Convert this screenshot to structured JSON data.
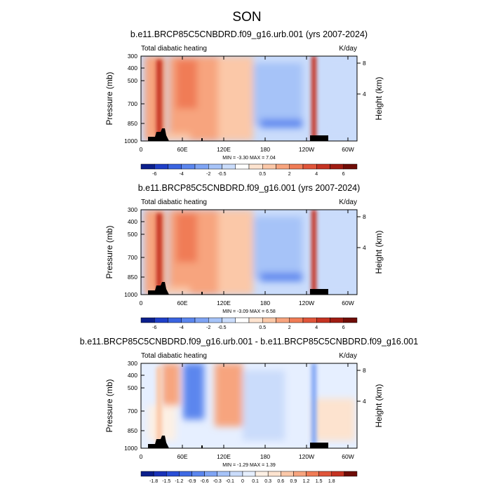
{
  "figure": {
    "season_title": "SON"
  },
  "chart_data": [
    {
      "type": "heatmap",
      "title": "b.e11.BRCP85C5CNBDRD.f09_g16.urb.001 (yrs 2007-2024)",
      "left_string": "Total diabatic heating",
      "right_string": "K/day",
      "ylabel": "Pressure (mb)",
      "y2label": "Height (km)",
      "x_ticks": [
        "0",
        "60E",
        "120E",
        "180",
        "120W",
        "60W"
      ],
      "y_ticks": [
        "300",
        "400",
        "500",
        "700",
        "850",
        "1000"
      ],
      "y2_ticks": [
        "8",
        "4"
      ],
      "stats": "MIN = -3.30   MAX =  7.04",
      "legend_labels": [
        "-6",
        "-4",
        "-2",
        "-0.5",
        "0.5",
        "2",
        "4",
        "6"
      ],
      "legend_colors": [
        "#0b1f8c",
        "#1f3fc8",
        "#3a64e0",
        "#5b86ee",
        "#7fa4f4",
        "#a6c3f8",
        "#cadcfb",
        "#ffffff",
        "#fde3cf",
        "#fbc8a8",
        "#f7a47e",
        "#f07c56",
        "#e0553a",
        "#c53322",
        "#a01c12",
        "#6f0c07"
      ]
    },
    {
      "type": "heatmap",
      "title": "b.e11.BRCP85C5CNBDRD.f09_g16.001 (yrs 2007-2024)",
      "left_string": "Total diabatic heating",
      "right_string": "K/day",
      "ylabel": "Pressure (mb)",
      "y2label": "Height (km)",
      "x_ticks": [
        "0",
        "60E",
        "120E",
        "180",
        "120W",
        "60W"
      ],
      "y_ticks": [
        "300",
        "400",
        "500",
        "700",
        "850",
        "1000"
      ],
      "y2_ticks": [
        "8",
        "4"
      ],
      "stats": "MIN = -3.09   MAX =  6.58",
      "legend_labels": [
        "-6",
        "-4",
        "-2",
        "-0.5",
        "0.5",
        "2",
        "4",
        "6"
      ],
      "legend_colors": [
        "#0b1f8c",
        "#1f3fc8",
        "#3a64e0",
        "#5b86ee",
        "#7fa4f4",
        "#a6c3f8",
        "#cadcfb",
        "#ffffff",
        "#fde3cf",
        "#fbc8a8",
        "#f7a47e",
        "#f07c56",
        "#e0553a",
        "#c53322",
        "#a01c12",
        "#6f0c07"
      ]
    },
    {
      "type": "heatmap",
      "title": "b.e11.BRCP85C5CNBDRD.f09_g16.urb.001 - b.e11.BRCP85C5CNBDRD.f09_g16.001",
      "left_string": "Total diabatic heating",
      "right_string": "K/day",
      "ylabel": "Pressure (mb)",
      "y2label": "Height (km)",
      "x_ticks": [
        "0",
        "60E",
        "120E",
        "180",
        "120W",
        "60W"
      ],
      "y_ticks": [
        "300",
        "400",
        "500",
        "700",
        "850",
        "1000"
      ],
      "y2_ticks": [
        "8",
        "4"
      ],
      "stats": "MIN = -1.29   MAX =  1.39",
      "legend_labels": [
        "-1.8",
        "-1.5",
        "-1.2",
        "-0.9",
        "-0.6",
        "-0.3",
        "-0.1",
        "0",
        "0.1",
        "0.3",
        "0.6",
        "0.9",
        "1.2",
        "1.5",
        "1.8"
      ],
      "legend_colors": [
        "#0b1f8c",
        "#1a33b8",
        "#2a4fd6",
        "#3f6ae4",
        "#5b86ee",
        "#7fa4f4",
        "#a6c3f8",
        "#cadcfb",
        "#e6efff",
        "#fdf0e4",
        "#fde3cf",
        "#fbc8a8",
        "#f7a47e",
        "#f07c56",
        "#e0553a",
        "#c53322",
        "#6f0c07"
      ]
    }
  ]
}
